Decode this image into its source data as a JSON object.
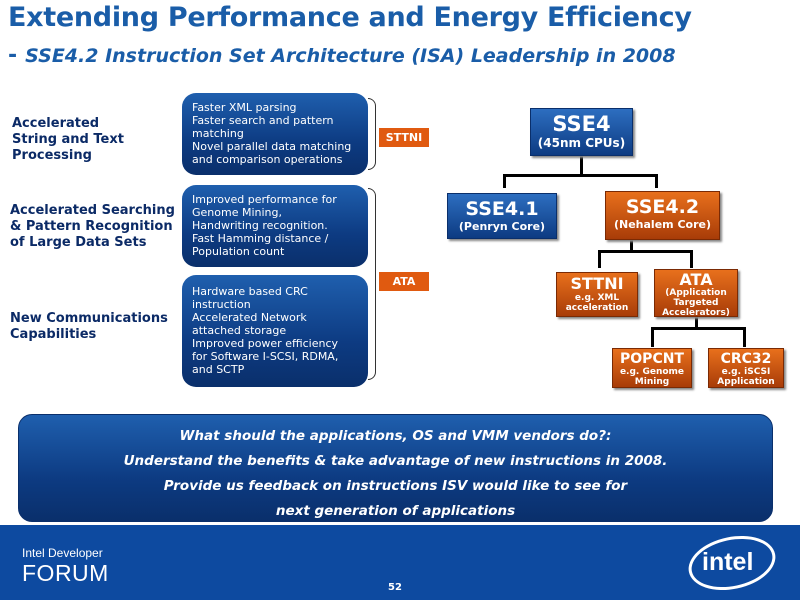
{
  "title": {
    "main": "Extending Performance and Energy Efficiency",
    "dash": "-",
    "sub": "SSE4.2 Instruction Set Architecture (ISA) Leadership in 2008"
  },
  "categories": {
    "string_text": [
      "Accelerated",
      "String and Text",
      "Processing"
    ],
    "search": [
      "Accelerated Searching",
      "& Pattern Recognition",
      "of Large Data Sets"
    ],
    "comms": [
      "New Communications",
      "Capabilities"
    ]
  },
  "feature_boxes": {
    "box1": [
      "Faster XML parsing",
      "Faster search and pattern",
      "matching",
      "Novel parallel data matching",
      "and comparison operations"
    ],
    "box2": [
      "Improved performance for",
      "Genome Mining,",
      "Handwriting recognition.",
      "Fast Hamming distance /",
      "Population count"
    ],
    "box3": [
      "Hardware based CRC",
      "instruction",
      "Accelerated Network",
      "attached storage",
      "Improved power efficiency",
      "for Software I-SCSI, RDMA,",
      "and SCTP"
    ]
  },
  "tags": {
    "sttni": "STTNI",
    "ata": "ATA"
  },
  "tree": {
    "sse4": {
      "name": "SSE4",
      "sub": "(45nm CPUs)"
    },
    "sse41": {
      "name": "SSE4.1",
      "sub": "(Penryn Core)"
    },
    "sse42": {
      "name": "SSE4.2",
      "sub": "(Nehalem Core)"
    },
    "sttni": {
      "name": "STTNI",
      "sub1": "e.g. XML",
      "sub2": "acceleration"
    },
    "ata": {
      "name": "ATA",
      "sub1": "(Application",
      "sub2": "Targeted",
      "sub3": "Accelerators)"
    },
    "popcnt": {
      "name": "POPCNT",
      "sub1": "e.g. Genome",
      "sub2": "Mining"
    },
    "crc32": {
      "name": "CRC32",
      "sub1": "e.g. iSCSI",
      "sub2": "Application"
    }
  },
  "callout": [
    "What should the applications, OS and VMM vendors do?:",
    "Understand the benefits & take advantage of new instructions in 2008.",
    "Provide us feedback on instructions ISV would like to see for",
    "next generation of applications"
  ],
  "footer": {
    "brand_line1": "Intel Developer",
    "brand_line2": "FORUM",
    "page": "52",
    "logo": "intel"
  },
  "colors": {
    "title_blue": "#1a5da8",
    "box_blue": "#0d3b82",
    "accent_orange": "#e05a10",
    "footer_blue": "#0d4aa0"
  }
}
